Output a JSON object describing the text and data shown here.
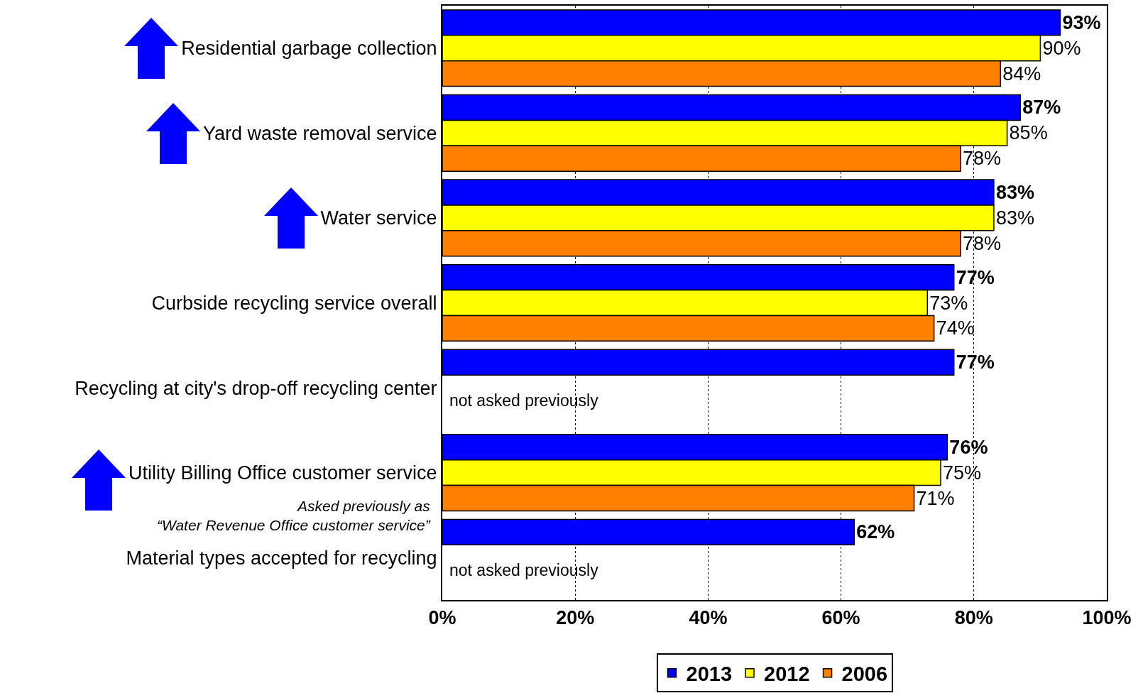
{
  "chart_data": {
    "type": "bar",
    "orientation": "horizontal",
    "categories": [
      "Residential garbage collection",
      "Yard waste removal service",
      "Water service",
      "Curbside recycling service overall",
      "Recycling at city's drop-off recycling center",
      "Utility Billing Office customer service",
      "Material types accepted for recycling"
    ],
    "series": [
      {
        "name": "2013",
        "color": "#0000ff",
        "values": [
          93,
          87,
          83,
          77,
          77,
          76,
          62
        ],
        "value_labels": [
          "93%",
          "87%",
          "83%",
          "77%",
          "77%",
          "76%",
          "62%"
        ]
      },
      {
        "name": "2012",
        "color": "#ffff00",
        "values": [
          90,
          85,
          83,
          73,
          null,
          75,
          null
        ],
        "value_labels": [
          "90%",
          "85%",
          "83%",
          "73%",
          null,
          "75%",
          null
        ]
      },
      {
        "name": "2006",
        "color": "#ff8000",
        "values": [
          84,
          78,
          78,
          74,
          null,
          71,
          null
        ],
        "value_labels": [
          "84%",
          "78%",
          "78%",
          "74%",
          null,
          "71%",
          null
        ]
      }
    ],
    "xlim": [
      0,
      100
    ],
    "xticks": [
      {
        "value": 0,
        "label": "0%"
      },
      {
        "value": 20,
        "label": "20%"
      },
      {
        "value": 40,
        "label": "40%"
      },
      {
        "value": 60,
        "label": "60%"
      },
      {
        "value": 80,
        "label": "80%"
      },
      {
        "value": 100,
        "label": "100%"
      }
    ],
    "grid": "x",
    "legend": "bottom",
    "annotations": [
      "not asked previously",
      "Asked previously as\n“Water Revenue Office customer service”",
      "not asked previously"
    ]
  }
}
